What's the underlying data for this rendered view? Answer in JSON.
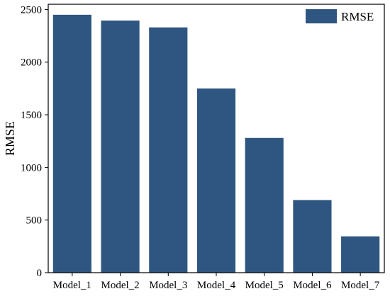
{
  "chart_data": {
    "type": "bar",
    "title": "",
    "xlabel": "",
    "ylabel": "RMSE",
    "categories": [
      "Model_1",
      "Model_2",
      "Model_3",
      "Model_4",
      "Model_5",
      "Model_6",
      "Model_7"
    ],
    "series": [
      {
        "name": "RMSE",
        "values": [
          2450,
          2395,
          2330,
          1750,
          1280,
          690,
          345
        ]
      }
    ],
    "ylim": [
      0,
      2550
    ],
    "yticks": [
      0,
      500,
      1000,
      1500,
      2000,
      2500
    ],
    "grid": false,
    "legend_position": "top-right",
    "colors": {
      "bar": "#2e5680",
      "axis": "#000000",
      "background": "#ffffff"
    }
  }
}
